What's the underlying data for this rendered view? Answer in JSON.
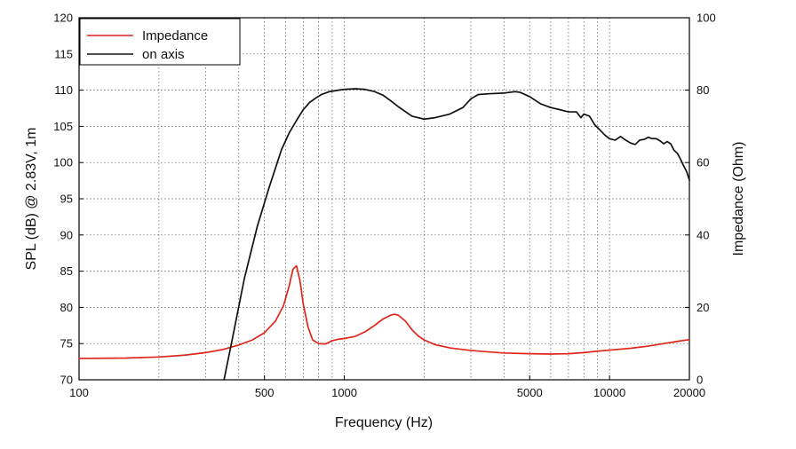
{
  "chart_data": {
    "type": "line",
    "title": "",
    "xlabel": "Frequency (Hz)",
    "ylabel": "SPL (dB) @ 2.83V, 1m",
    "y2label": "Impedance (Ohm)",
    "xscale": "log",
    "xlim": [
      100,
      20000
    ],
    "ylim": [
      70,
      120
    ],
    "y2lim": [
      0,
      100
    ],
    "grid": true,
    "legend_position": "top-left",
    "x_ticks": [
      100,
      500,
      1000,
      5000,
      10000,
      20000
    ],
    "x_tick_labels": [
      "100",
      "500",
      "1000",
      "5000",
      "10000",
      "20000"
    ],
    "y_ticks": [
      70,
      75,
      80,
      85,
      90,
      95,
      100,
      105,
      110,
      115,
      120
    ],
    "y_tick_labels": [
      "70",
      "75",
      "80",
      "85",
      "90",
      "95",
      "100",
      "105",
      "110",
      "115",
      "120"
    ],
    "y2_ticks": [
      0,
      20,
      40,
      60,
      80,
      100
    ],
    "y2_tick_labels": [
      "0",
      "20",
      "40",
      "60",
      "80",
      "100"
    ],
    "series": [
      {
        "name": "Impedance",
        "axis": "right",
        "color": "#e0261b",
        "x": [
          100,
          150,
          200,
          250,
          300,
          350,
          400,
          450,
          500,
          550,
          590,
          620,
          640,
          660,
          680,
          700,
          730,
          760,
          800,
          850,
          900,
          950,
          1000,
          1100,
          1200,
          1300,
          1400,
          1500,
          1550,
          1600,
          1700,
          1800,
          1900,
          2000,
          2200,
          2500,
          3000,
          3500,
          4000,
          5000,
          6000,
          7000,
          8000,
          9000,
          10000,
          12000,
          14000,
          16000,
          18000,
          20000
        ],
        "values": [
          5.9,
          6.0,
          6.3,
          6.8,
          7.5,
          8.4,
          9.6,
          11.0,
          13.0,
          16.2,
          20.5,
          26.0,
          30.5,
          31.5,
          27.5,
          21.0,
          14.5,
          11.0,
          10.0,
          9.9,
          10.8,
          11.2,
          11.4,
          12.0,
          13.3,
          15.0,
          16.8,
          17.9,
          18.1,
          17.8,
          16.2,
          13.8,
          12.1,
          11.0,
          9.7,
          8.8,
          8.1,
          7.7,
          7.4,
          7.2,
          7.1,
          7.2,
          7.5,
          7.9,
          8.2,
          8.7,
          9.3,
          10.0,
          10.6,
          11.1
        ]
      },
      {
        "name": "on axis",
        "axis": "left",
        "color": "#111111",
        "x": [
          352,
          380,
          420,
          470,
          520,
          580,
          620,
          660,
          700,
          740,
          780,
          820,
          880,
          950,
          1000,
          1100,
          1200,
          1300,
          1400,
          1500,
          1600,
          1800,
          2000,
          2200,
          2500,
          2800,
          3000,
          3200,
          3500,
          4000,
          4200,
          4400,
          4600,
          5000,
          5500,
          6000,
          6500,
          7000,
          7500,
          7800,
          8000,
          8400,
          8800,
          9200,
          9600,
          10000,
          10500,
          11000,
          11500,
          12000,
          12500,
          13000,
          13500,
          14000,
          14500,
          15000,
          15500,
          16000,
          16500,
          17000,
          17500,
          18000,
          18500,
          19000,
          19500,
          20000
        ],
        "values": [
          70.0,
          76.0,
          84.0,
          91.2,
          96.5,
          101.8,
          104.1,
          105.8,
          107.3,
          108.3,
          108.9,
          109.4,
          109.8,
          110.0,
          110.1,
          110.2,
          110.1,
          109.8,
          109.3,
          108.5,
          107.7,
          106.4,
          106.0,
          106.2,
          106.7,
          107.6,
          108.8,
          109.4,
          109.5,
          109.6,
          109.7,
          109.8,
          109.7,
          109.1,
          108.1,
          107.6,
          107.3,
          107.0,
          107.0,
          106.2,
          106.7,
          106.4,
          105.2,
          104.5,
          103.8,
          103.3,
          103.1,
          103.6,
          103.1,
          102.7,
          102.5,
          103.1,
          103.2,
          103.5,
          103.3,
          103.3,
          103.0,
          102.6,
          102.9,
          102.6,
          101.7,
          101.3,
          100.5,
          99.6,
          98.8,
          97.6
        ]
      }
    ]
  }
}
